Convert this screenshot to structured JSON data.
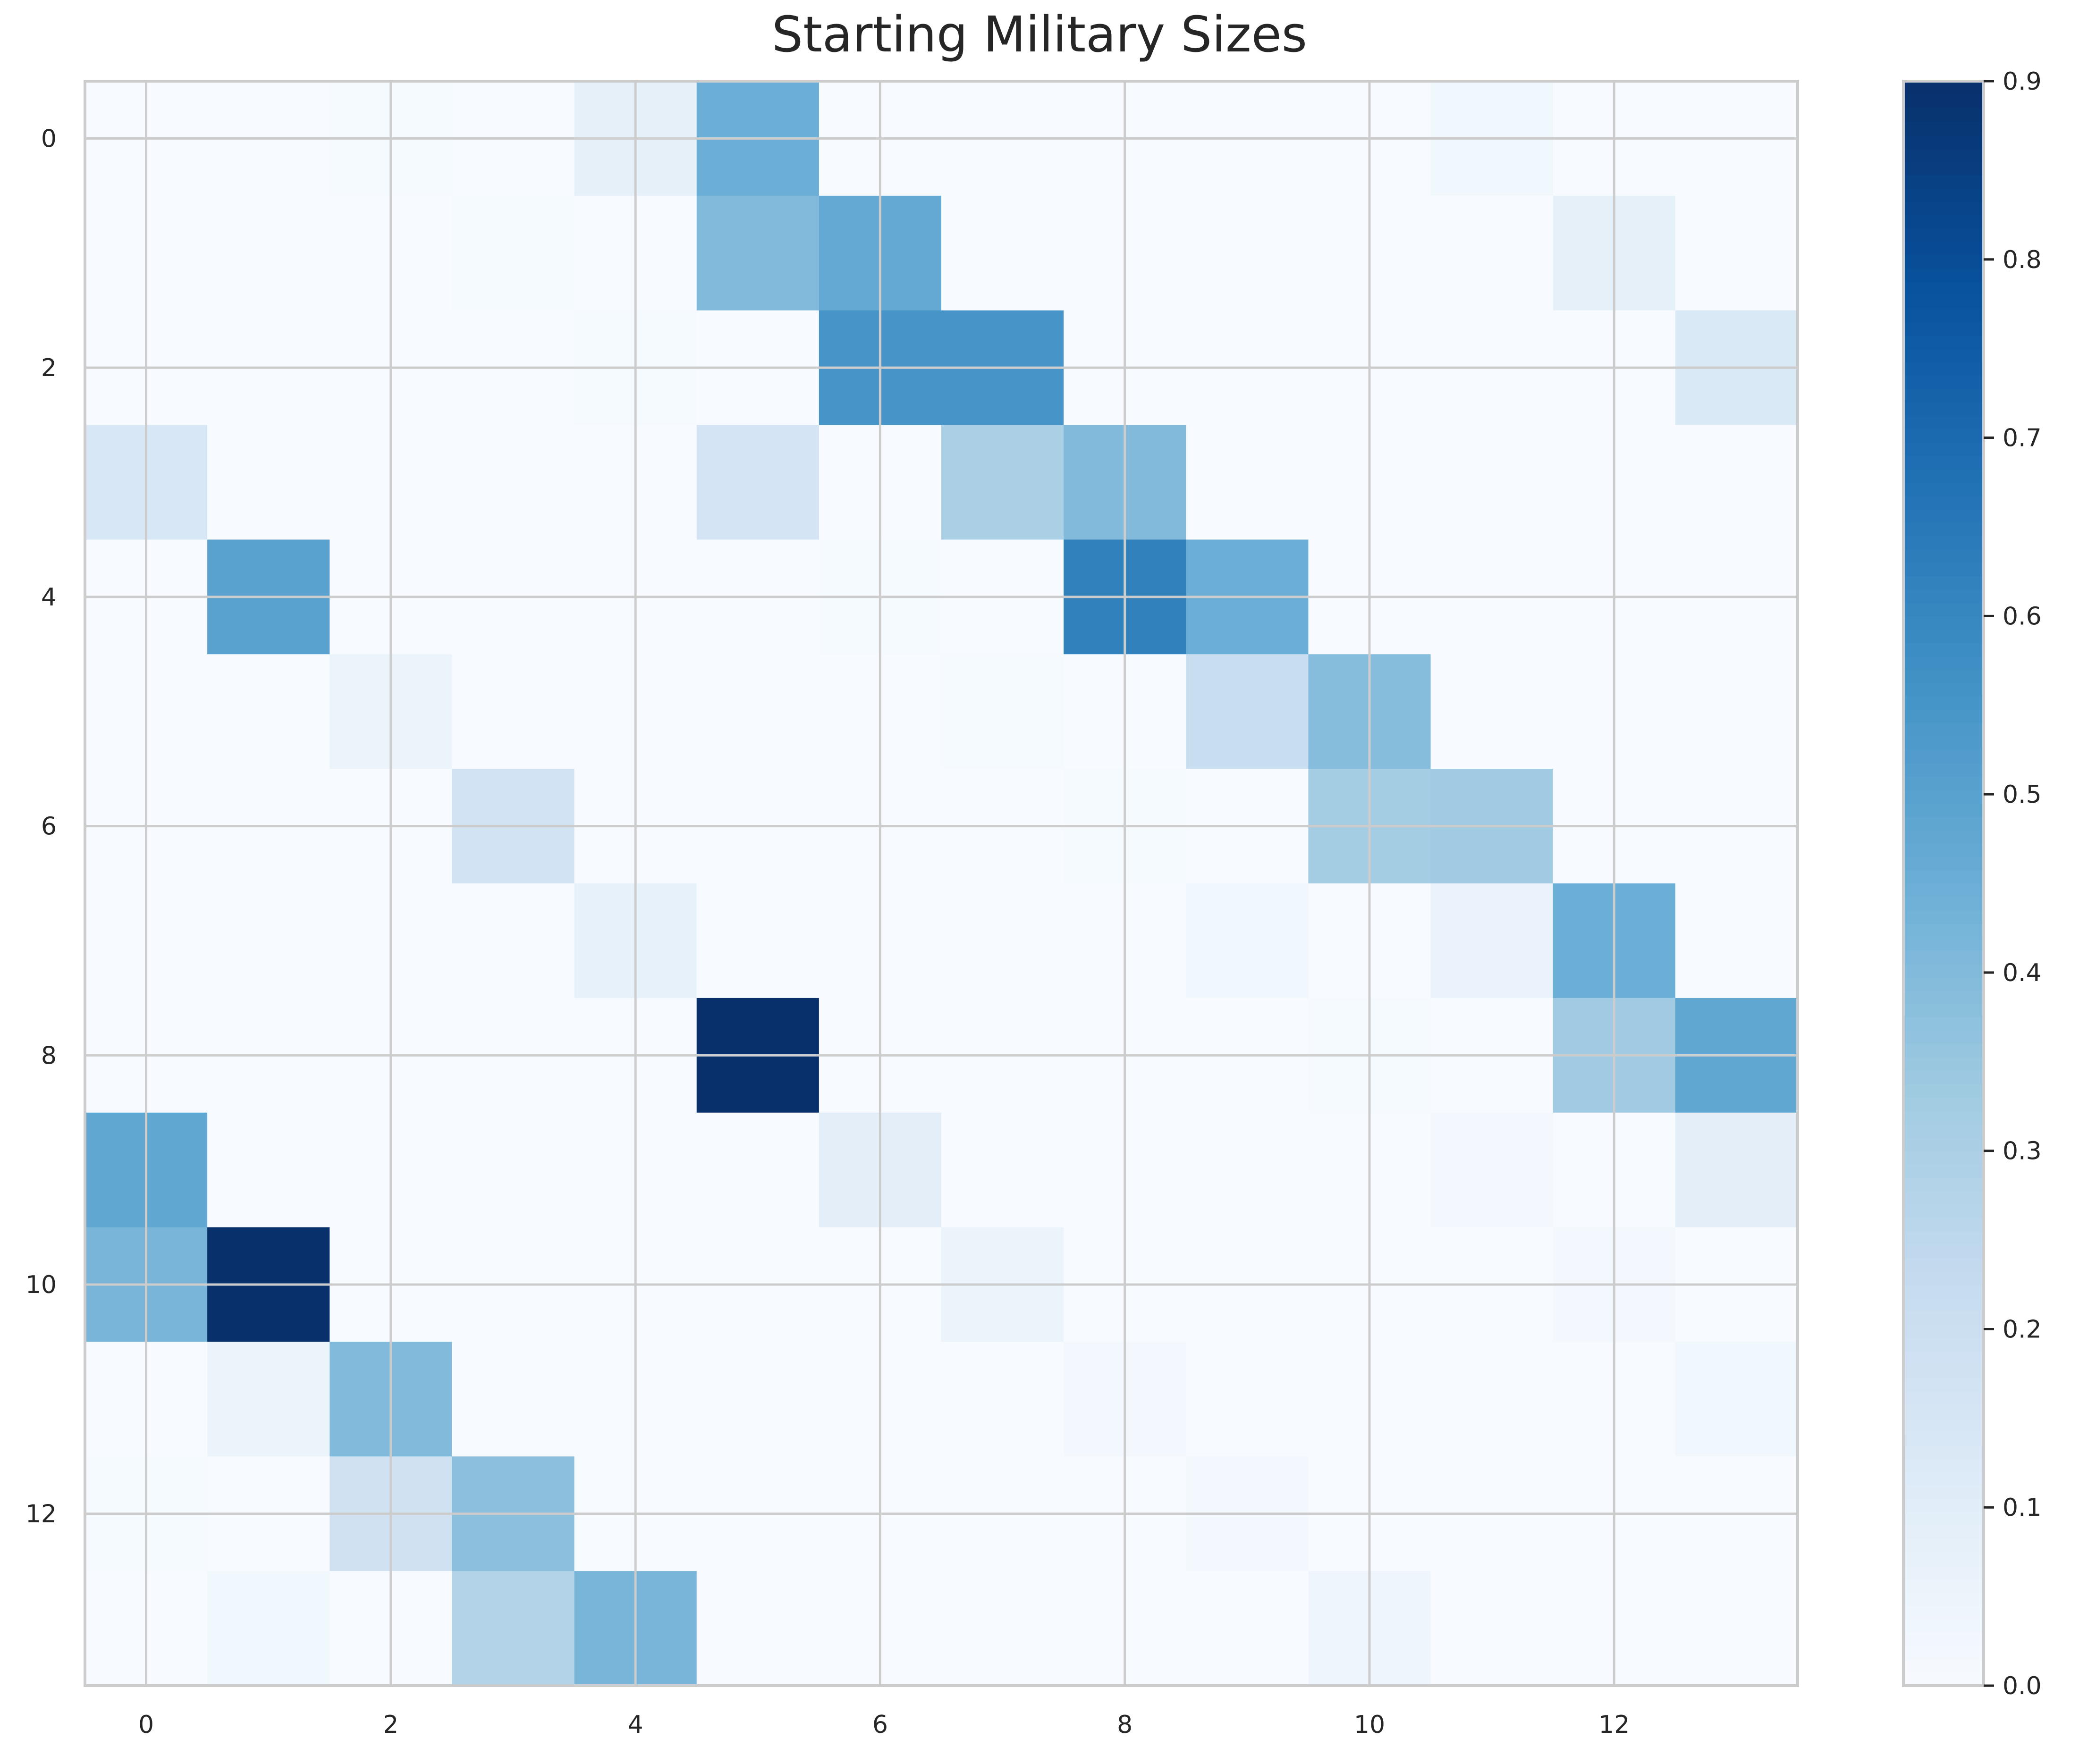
{
  "chart_data": {
    "type": "heatmap",
    "title": "Starting Military Sizes",
    "colormap": "Blues",
    "vmin": 0,
    "vmax": 0.9,
    "x_ticks": [
      0,
      2,
      4,
      6,
      8,
      10,
      12
    ],
    "y_ticks": [
      0,
      2,
      4,
      6,
      8,
      10,
      12
    ],
    "colorbar_ticks": [
      "0.0",
      "0.1",
      "0.2",
      "0.3",
      "0.4",
      "0.5",
      "0.6",
      "0.7",
      "0.8",
      "0.9"
    ],
    "grid": true,
    "matrix": [
      [
        0.0,
        0.0,
        0.01,
        0.0,
        0.08,
        0.45,
        0.0,
        0.0,
        0.0,
        0.0,
        0.0,
        0.03,
        0.0,
        0.0
      ],
      [
        0.0,
        0.0,
        0.0,
        0.01,
        0.0,
        0.4,
        0.47,
        0.0,
        0.0,
        0.0,
        0.0,
        0.0,
        0.08,
        0.0
      ],
      [
        0.0,
        0.0,
        0.0,
        0.0,
        0.01,
        0.0,
        0.55,
        0.55,
        0.0,
        0.0,
        0.0,
        0.0,
        0.0,
        0.13
      ],
      [
        0.14,
        0.0,
        0.0,
        0.0,
        0.0,
        0.16,
        0.0,
        0.3,
        0.4,
        0.0,
        0.0,
        0.0,
        0.0,
        0.0
      ],
      [
        0.0,
        0.5,
        0.0,
        0.0,
        0.0,
        0.0,
        0.01,
        0.0,
        0.62,
        0.45,
        0.0,
        0.0,
        0.0,
        0.0
      ],
      [
        0.0,
        0.0,
        0.05,
        0.0,
        0.0,
        0.0,
        0.0,
        0.01,
        0.0,
        0.21,
        0.39,
        0.0,
        0.0,
        0.0
      ],
      [
        0.0,
        0.0,
        0.0,
        0.17,
        0.0,
        0.0,
        0.0,
        0.0,
        0.01,
        0.0,
        0.32,
        0.33,
        0.0,
        0.0
      ],
      [
        0.0,
        0.0,
        0.0,
        0.0,
        0.07,
        0.0,
        0.0,
        0.0,
        0.0,
        0.03,
        0.0,
        0.06,
        0.45,
        0.0
      ],
      [
        0.0,
        0.0,
        0.0,
        0.0,
        0.0,
        0.9,
        0.0,
        0.0,
        0.0,
        0.0,
        0.01,
        0.0,
        0.33,
        0.48
      ],
      [
        0.48,
        0.0,
        0.0,
        0.0,
        0.0,
        0.0,
        0.09,
        0.0,
        0.0,
        0.0,
        0.0,
        0.02,
        0.0,
        0.09
      ],
      [
        0.42,
        0.9,
        0.0,
        0.0,
        0.0,
        0.0,
        0.0,
        0.05,
        0.0,
        0.0,
        0.0,
        0.0,
        0.02,
        0.0
      ],
      [
        0.0,
        0.05,
        0.4,
        0.0,
        0.0,
        0.0,
        0.0,
        0.0,
        0.02,
        0.0,
        0.0,
        0.0,
        0.0,
        0.03
      ],
      [
        0.01,
        0.0,
        0.18,
        0.38,
        0.0,
        0.0,
        0.0,
        0.0,
        0.0,
        0.02,
        0.0,
        0.0,
        0.0,
        0.0
      ],
      [
        0.0,
        0.03,
        0.0,
        0.28,
        0.42,
        0.0,
        0.0,
        0.0,
        0.0,
        0.0,
        0.04,
        0.0,
        0.0,
        0.0
      ]
    ]
  }
}
